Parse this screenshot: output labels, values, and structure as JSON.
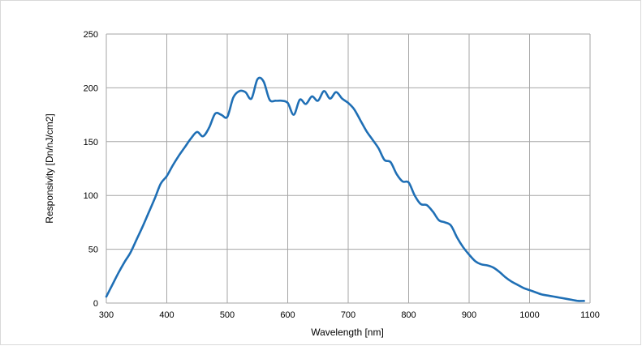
{
  "chart_data": {
    "type": "line",
    "title": "",
    "xlabel": "Wavelength [nm]",
    "ylabel": "Responsivity [Dn/nJ/cm2]",
    "xlim": [
      300,
      1100
    ],
    "ylim": [
      0,
      250
    ],
    "xticks": [
      300,
      400,
      500,
      600,
      700,
      800,
      900,
      1000,
      1100
    ],
    "yticks": [
      0,
      50,
      100,
      150,
      200,
      250
    ],
    "xtick_labels": [
      "300",
      "400",
      "500",
      "600",
      "700",
      "800",
      "900",
      "1000",
      "1100"
    ],
    "ytick_labels": [
      "0",
      "50",
      "100",
      "150",
      "200",
      "250"
    ],
    "grid": true,
    "legend": "none",
    "line_color": "#1f6fb5",
    "grid_color": "#a6a6a6",
    "series": [
      {
        "x": [
          300,
          310,
          320,
          330,
          340,
          350,
          360,
          370,
          380,
          390,
          400,
          410,
          420,
          430,
          440,
          450,
          460,
          470,
          480,
          490,
          500,
          510,
          520,
          530,
          540,
          550,
          560,
          570,
          580,
          590,
          600,
          610,
          620,
          630,
          640,
          650,
          660,
          670,
          680,
          690,
          700,
          710,
          720,
          730,
          740,
          750,
          760,
          770,
          780,
          790,
          800,
          810,
          820,
          830,
          840,
          850,
          860,
          870,
          880,
          890,
          900,
          910,
          920,
          930,
          940,
          950,
          960,
          970,
          980,
          990,
          1000,
          1010,
          1020,
          1030,
          1040,
          1050,
          1060,
          1070,
          1080,
          1090
        ],
        "y": [
          6,
          17,
          28,
          38,
          47,
          59,
          71,
          84,
          97,
          111,
          118,
          128,
          137,
          145,
          153,
          159,
          155,
          163,
          176,
          175,
          173,
          191,
          197,
          196,
          190,
          208,
          206,
          189,
          188,
          188,
          186,
          175,
          189,
          185,
          192,
          188,
          197,
          190,
          196,
          190,
          186,
          180,
          170,
          160,
          152,
          144,
          133,
          131,
          120,
          113,
          112,
          100,
          92,
          91,
          85,
          77,
          75,
          72,
          61,
          52,
          45,
          39,
          36,
          35,
          33,
          29,
          24,
          20,
          17,
          14,
          12,
          10,
          8,
          7,
          6,
          5,
          4,
          3,
          2,
          2
        ]
      }
    ]
  }
}
